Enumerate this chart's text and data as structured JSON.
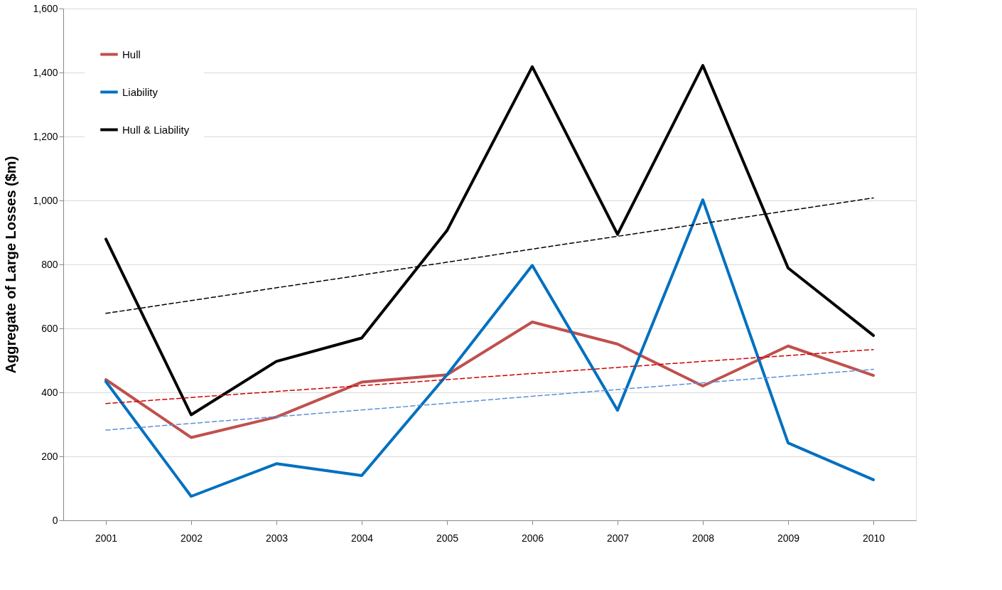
{
  "chart_data": {
    "type": "line",
    "ylabel": "Aggregate of Large Losses ($m)",
    "categories": [
      "2001",
      "2002",
      "2003",
      "2004",
      "2005",
      "2006",
      "2007",
      "2008",
      "2009",
      "2010"
    ],
    "series": [
      {
        "name": "Hull",
        "color": "#c0504d",
        "values": [
          440,
          259,
          323,
          432,
          455,
          620,
          551,
          420,
          545,
          453
        ]
      },
      {
        "name": "Liability",
        "color": "#0070c0",
        "values": [
          434,
          75,
          177,
          140,
          455,
          797,
          344,
          1002,
          242,
          127
        ]
      },
      {
        "name": "Hull & Liability",
        "color": "#000000",
        "values": [
          879,
          330,
          497,
          570,
          906,
          1418,
          894,
          1422,
          789,
          578
        ]
      },
      {
        "type": "line",
        "color": "#cc0000",
        "line_style": "dashed",
        "values": [
          365,
          384,
          403,
          421,
          440,
          459,
          478,
          497,
          515,
          534
        ]
      },
      {
        "type": "line",
        "color": "#5b8fd9",
        "line_style": "dashed",
        "values": [
          282,
          303,
          324,
          345,
          366,
          388,
          409,
          430,
          451,
          472
        ]
      },
      {
        "type": "line",
        "color": "#000000",
        "line_style": "dashed",
        "values": [
          647,
          687,
          727,
          767,
          807,
          848,
          888,
          928,
          968,
          1008
        ]
      }
    ],
    "ylim": [
      0,
      1600
    ],
    "yticks": [
      0,
      200,
      400,
      600,
      800,
      {
        "value": 1000,
        "label": "1,000"
      },
      {
        "value": 1200,
        "label": "1,200"
      },
      {
        "value": 1400,
        "label": "1,400"
      },
      {
        "value": 1600,
        "label": "1,600"
      }
    ],
    "grid": "y",
    "legend": "top left",
    "line_style": "solid",
    "marker": "none"
  }
}
